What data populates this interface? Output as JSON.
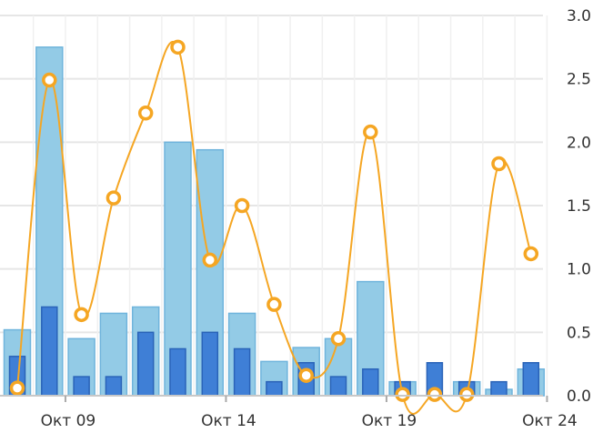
{
  "chart_data": {
    "type": "bar",
    "title": "",
    "xlabel": "",
    "ylabel": "",
    "ylim": [
      0,
      3
    ],
    "yticks": [
      "0.0",
      "0.5",
      "1.0",
      "1.5",
      "2.0",
      "2.5",
      "3.0"
    ],
    "xticks": [
      {
        "label": "Окт 09",
        "index": 1
      },
      {
        "label": "Окт 14",
        "index": 6
      },
      {
        "label": "Окт 19",
        "index": 11
      },
      {
        "label": "Окт 24",
        "index": 16
      }
    ],
    "grid": true,
    "y_axis_position": "right",
    "series": [
      {
        "name": "light-bars",
        "kind": "bar",
        "color": "#93cbe6",
        "values": [
          0.52,
          2.75,
          0.45,
          0.65,
          0.7,
          2.0,
          1.94,
          0.65,
          0.27,
          0.38,
          0.45,
          0.9,
          0.11,
          0.0,
          0.11,
          0.05,
          0.21
        ]
      },
      {
        "name": "dark-bars",
        "kind": "bar",
        "color": "#3f7fd6",
        "values": [
          0.31,
          0.7,
          0.15,
          0.15,
          0.5,
          0.37,
          0.5,
          0.37,
          0.11,
          0.26,
          0.15,
          0.21,
          0.11,
          0.26,
          0.11,
          0.11,
          0.26
        ]
      },
      {
        "name": "line",
        "kind": "line",
        "color": "#f5a623",
        "values": [
          0.06,
          2.49,
          0.64,
          1.56,
          2.23,
          2.75,
          1.07,
          1.5,
          0.72,
          0.16,
          0.45,
          2.08,
          0.01,
          0.01,
          0.01,
          1.83,
          1.12
        ]
      }
    ]
  }
}
